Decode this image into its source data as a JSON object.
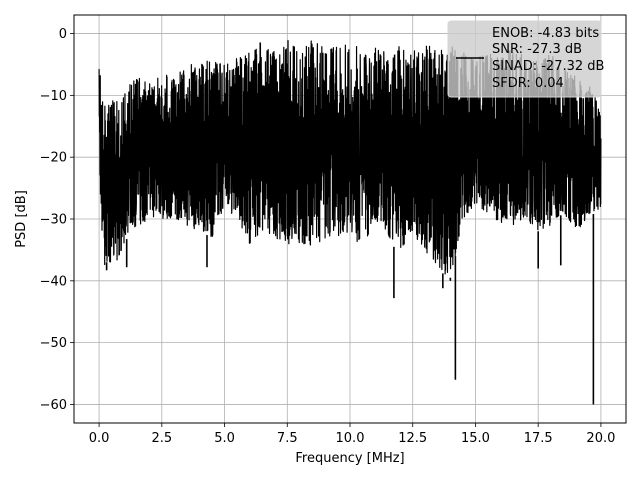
{
  "chart_data": {
    "type": "line",
    "title": "",
    "xlabel": "Frequency [MHz]",
    "ylabel": "PSD [dB]",
    "xlim": [
      -1.0,
      21.0
    ],
    "ylim": [
      -63.0,
      3.0
    ],
    "x_ticks": [
      0.0,
      2.5,
      5.0,
      7.5,
      10.0,
      12.5,
      15.0,
      17.5,
      20.0
    ],
    "x_tick_labels": [
      "0.0",
      "2.5",
      "5.0",
      "7.5",
      "10.0",
      "12.5",
      "15.0",
      "17.5",
      "20.0"
    ],
    "y_ticks": [
      0,
      -10,
      -20,
      -30,
      -40,
      -50,
      -60
    ],
    "y_tick_labels": [
      "0",
      "−10",
      "−20",
      "−30",
      "−40",
      "−50",
      "−60"
    ],
    "grid": true,
    "legend": {
      "placement": "top-right",
      "entries": [
        "ENOB: -4.83 bits",
        "SNR: -27.3 dB",
        "SINAD: -27.32 dB",
        "SFDR: 0.04"
      ]
    },
    "line_color": "#000000",
    "series": [
      {
        "x": [
          0.0,
          0.05,
          0.1,
          0.2,
          0.3,
          0.5,
          0.8,
          1.2,
          1.6,
          2.0,
          2.5,
          3.0,
          3.5,
          4.0,
          4.5,
          5.0,
          5.5,
          6.0,
          6.5,
          7.0,
          7.5,
          8.0,
          8.5,
          9.0,
          9.5,
          10.0,
          10.5,
          11.0,
          11.5,
          12.0,
          12.5,
          13.0,
          13.5,
          14.0,
          14.5,
          15.0,
          15.5,
          16.0,
          16.5,
          17.0,
          17.5,
          18.0,
          18.5,
          19.0,
          19.5,
          20.0
        ],
        "y_upper": [
          -3.5,
          -5,
          -8,
          -12,
          -11,
          -10,
          -9,
          -8,
          -7,
          -8,
          -6,
          -7,
          -5,
          -5,
          -4,
          -5,
          -4,
          -3,
          -1,
          -2,
          -1,
          -3,
          -1,
          -2,
          -2,
          -1,
          -3,
          -2,
          -3,
          -2,
          -3,
          -1,
          -3,
          -2,
          -3,
          -4,
          -3,
          -4,
          -2,
          -4,
          -4,
          -3,
          -5,
          -7,
          -8,
          -12
        ],
        "y_lower": [
          -20,
          -28,
          -33,
          -38,
          -37,
          -37,
          -37,
          -32,
          -31,
          -30,
          -30,
          -30,
          -31,
          -32,
          -33,
          -28,
          -30,
          -34,
          -32,
          -33,
          -34,
          -34,
          -35,
          -34,
          -33,
          -32,
          -35,
          -30,
          -33,
          -36,
          -32,
          -36,
          -38,
          -40,
          -30,
          -28,
          -29,
          -31,
          -31,
          -30,
          -32,
          -31,
          -29,
          -32,
          -30,
          -28
        ],
        "spikes": [
          {
            "x": 0.3,
            "y": -38.3
          },
          {
            "x": 1.1,
            "y": -37.8
          },
          {
            "x": 4.3,
            "y": -37.8
          },
          {
            "x": 11.75,
            "y": -42.8
          },
          {
            "x": 13.7,
            "y": -41.2
          },
          {
            "x": 14.0,
            "y": -39.5
          },
          {
            "x": 14.2,
            "y": -56.0
          },
          {
            "x": 17.5,
            "y": -38.0
          },
          {
            "x": 18.4,
            "y": -37.5
          },
          {
            "x": 19.7,
            "y": -60.0
          }
        ]
      }
    ]
  }
}
